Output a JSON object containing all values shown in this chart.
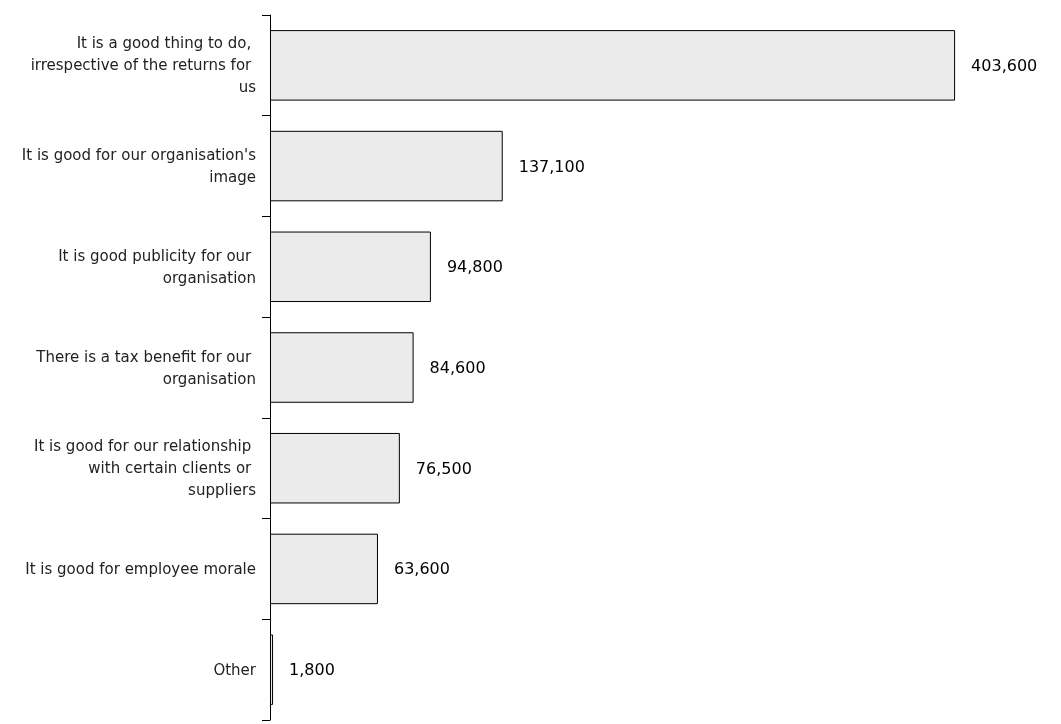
{
  "chart_data": {
    "type": "bar",
    "orientation": "horizontal",
    "categories": [
      "It is a good thing to do, irrespective of the returns for us",
      "It is good for our organisation's image",
      "It is good publicity for our organisation",
      "There is a tax benefit for our organisation",
      "It is good for our relationship with certain clients or suppliers",
      "It is good for employee morale",
      "Other"
    ],
    "values": [
      403600,
      137100,
      94800,
      84600,
      76500,
      63600,
      1800
    ],
    "value_labels": [
      "403,600",
      "137,100",
      "94,800",
      "84,600",
      "76,500",
      "63,600",
      "1,800"
    ],
    "color": "#ebebeb"
  }
}
